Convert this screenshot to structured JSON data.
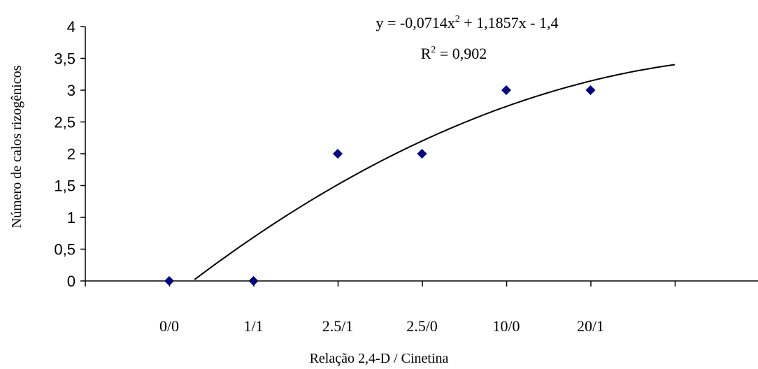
{
  "chart_data": {
    "type": "scatter",
    "categories": [
      "0/0",
      "1/1",
      "2.5/1",
      "2.5/0",
      "10/0",
      "20/1"
    ],
    "values": [
      0,
      0,
      2,
      2,
      3,
      3
    ],
    "xlabel": "Relação 2,4-D / Cinetina",
    "ylabel": "Número de calos rizogênicos",
    "ylim": [
      0,
      4
    ],
    "yticks": [
      "0",
      "0,5",
      "1",
      "1,5",
      "2",
      "2,5",
      "3",
      "3,5",
      "4"
    ],
    "trendline": {
      "type": "polynomial",
      "coefficients": [
        -0.0714,
        1.1857,
        -1.4
      ],
      "x_range": [
        1.3,
        7.0
      ],
      "equation_prefix": "y = -0,0714x",
      "equation_exponent": "2",
      "equation_suffix": " + 1,1857x - 1,4",
      "r2_prefix": "R",
      "r2_exponent": "2",
      "r2_suffix": " = 0,902"
    },
    "marker_color": "#000080",
    "line_color": "#000000",
    "grid": false,
    "legend": "none"
  }
}
